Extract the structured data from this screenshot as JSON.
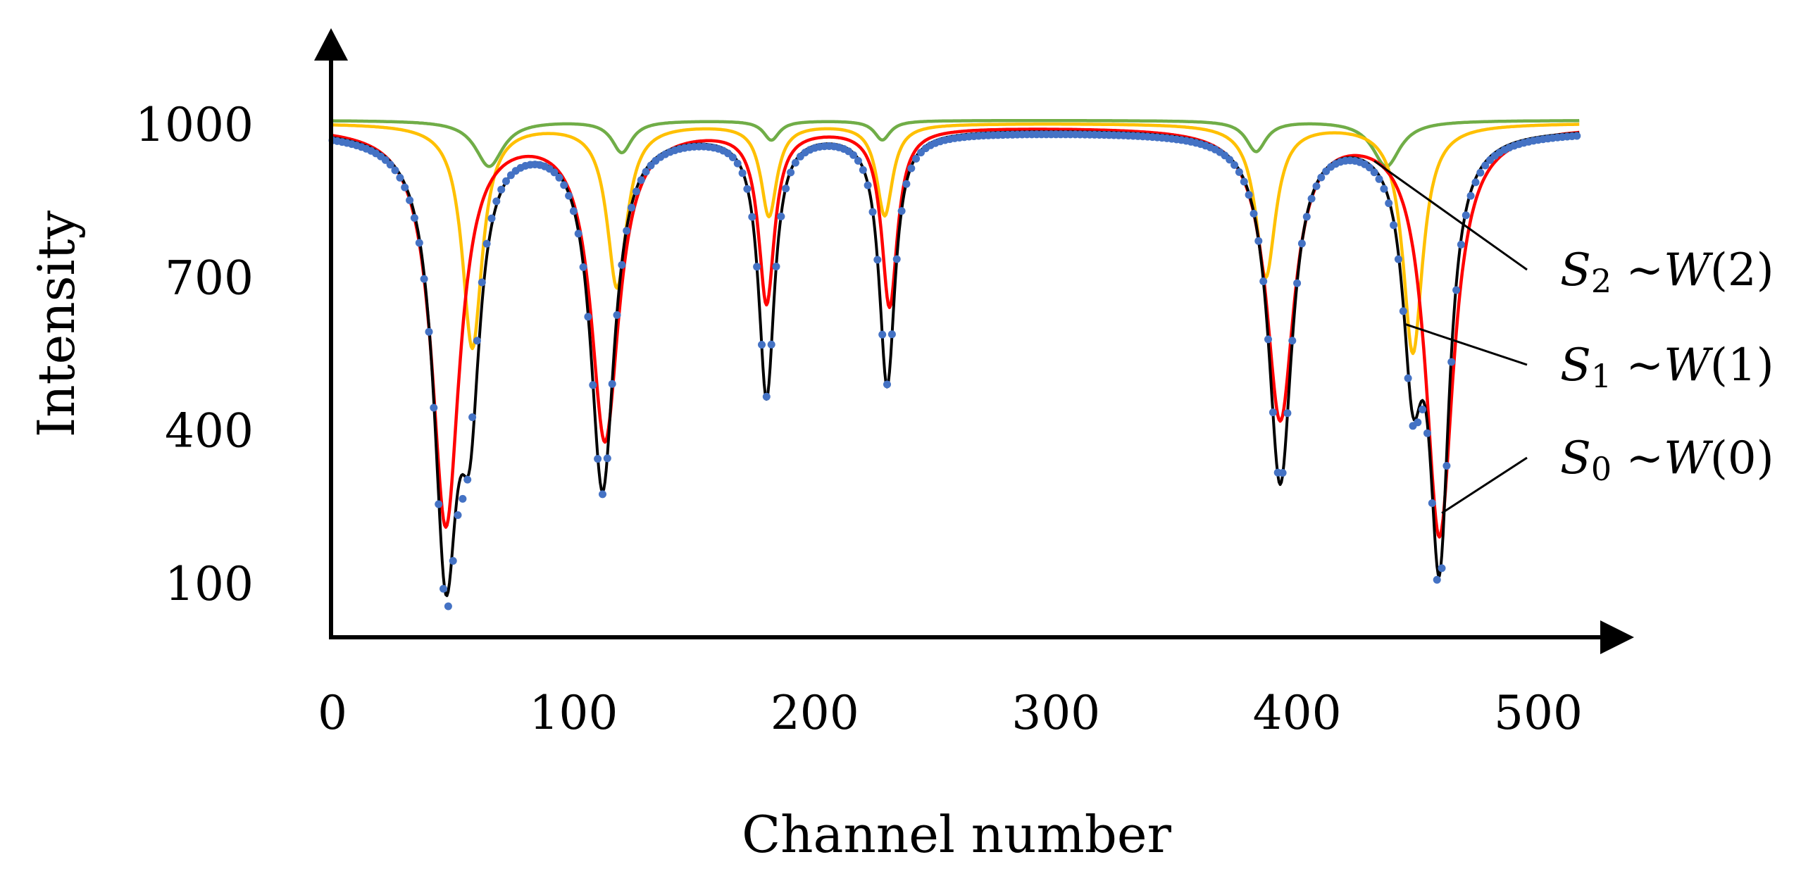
{
  "chart_data": {
    "type": "line",
    "title": "",
    "xlabel": "Channel number",
    "ylabel": "Intensity",
    "xlim": [
      0,
      520
    ],
    "ylim": [
      0,
      1100
    ],
    "x_ticks": [
      0,
      100,
      200,
      300,
      400,
      500
    ],
    "x_tick_labels": [
      "0",
      "100",
      "200",
      "300",
      "400",
      "500"
    ],
    "y_ticks": [
      100,
      400,
      700,
      1000
    ],
    "y_tick_labels": [
      "100",
      "400",
      "700",
      "1000"
    ],
    "grid": false,
    "colors": {
      "measured": "#4472C4",
      "fit_total": "#000000",
      "S0": "#FF0000",
      "S1": "#FFC000",
      "S2": "#70AD47"
    },
    "series": [
      {
        "key": "S2",
        "baseline": 1010,
        "dips": [
          {
            "center": 65,
            "depth": 90,
            "width": 7
          },
          {
            "center": 120,
            "depth": 62,
            "width": 5
          },
          {
            "center": 182,
            "depth": 38,
            "width": 4
          },
          {
            "center": 228,
            "depth": 38,
            "width": 4
          },
          {
            "center": 383,
            "depth": 60,
            "width": 5
          },
          {
            "center": 437,
            "depth": 90,
            "width": 7
          }
        ]
      },
      {
        "key": "S1",
        "baseline": 1005,
        "dips": [
          {
            "center": 58,
            "depth": 440,
            "width": 5
          },
          {
            "center": 118,
            "depth": 320,
            "width": 5
          },
          {
            "center": 181,
            "depth": 180,
            "width": 4
          },
          {
            "center": 229,
            "depth": 180,
            "width": 4
          },
          {
            "center": 387,
            "depth": 300,
            "width": 5
          },
          {
            "center": 448,
            "depth": 450,
            "width": 5
          }
        ]
      },
      {
        "key": "S0",
        "baseline": 1000,
        "dips": [
          {
            "center": 47,
            "depth": 780,
            "width": 7
          },
          {
            "center": 113,
            "depth": 610,
            "width": 7
          },
          {
            "center": 180,
            "depth": 340,
            "width": 4
          },
          {
            "center": 231,
            "depth": 350,
            "width": 4
          },
          {
            "center": 393,
            "depth": 570,
            "width": 7
          },
          {
            "center": 459,
            "depth": 800,
            "width": 7
          }
        ]
      },
      {
        "key": "fit_total",
        "baseline": 995,
        "dips": [
          {
            "center": 47,
            "depth": 820,
            "width": 6
          },
          {
            "center": 57,
            "depth": 440,
            "width": 5
          },
          {
            "center": 112,
            "depth": 700,
            "width": 6
          },
          {
            "center": 180,
            "depth": 520,
            "width": 4
          },
          {
            "center": 230,
            "depth": 500,
            "width": 4
          },
          {
            "center": 393,
            "depth": 690,
            "width": 6
          },
          {
            "center": 448,
            "depth": 420,
            "width": 5
          },
          {
            "center": 459,
            "depth": 800,
            "width": 5
          }
        ]
      },
      {
        "key": "measured",
        "baseline": 990,
        "dips": [
          {
            "center": 47,
            "depth": 830,
            "width": 6
          },
          {
            "center": 56,
            "depth": 420,
            "width": 5
          },
          {
            "center": 112,
            "depth": 700,
            "width": 6
          },
          {
            "center": 180,
            "depth": 510,
            "width": 4
          },
          {
            "center": 230,
            "depth": 490,
            "width": 4
          },
          {
            "center": 393,
            "depth": 680,
            "width": 6
          },
          {
            "center": 448,
            "depth": 430,
            "width": 5
          },
          {
            "center": 459,
            "depth": 820,
            "width": 5
          }
        ]
      }
    ],
    "annotations": [
      {
        "key": "S2",
        "letter": "S",
        "sub": "2",
        "rest": " ~",
        "fn": "W",
        "arg": "(2)",
        "point_x": 432,
        "point_y": 930
      },
      {
        "key": "S1",
        "letter": "S",
        "sub": "1",
        "rest": " ~",
        "fn": "W",
        "arg": "(1)",
        "point_x": 445,
        "point_y": 610
      },
      {
        "key": "S0",
        "letter": "S",
        "sub": "0",
        "rest": " ~",
        "fn": "W",
        "arg": "(0)",
        "point_x": 460,
        "point_y": 240
      }
    ]
  }
}
